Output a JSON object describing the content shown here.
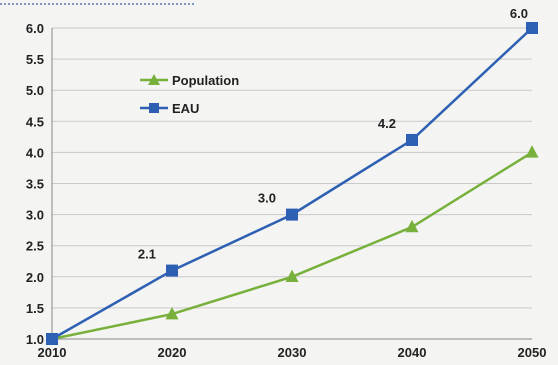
{
  "chart_data": {
    "type": "line",
    "title": "",
    "xlabel": "",
    "ylabel": "",
    "x": [
      2010,
      2020,
      2030,
      2040,
      2050
    ],
    "x_tick_labels": [
      "2010",
      "2020",
      "2030",
      "2040",
      "2050"
    ],
    "ylim": [
      1.0,
      6.0
    ],
    "y_ticks": [
      1.0,
      1.5,
      2.0,
      2.5,
      3.0,
      3.5,
      4.0,
      4.5,
      5.0,
      5.5,
      6.0
    ],
    "y_tick_labels": [
      "1.0",
      "1.5",
      "2.0",
      "2.5",
      "3.0",
      "3.5",
      "4.0",
      "4.5",
      "5.0",
      "5.5",
      "6.0"
    ],
    "grid": "horizontal",
    "legend_position": "upper-left",
    "series": [
      {
        "name": "Population",
        "marker": "triangle",
        "color": "#77b03a",
        "values": [
          1.0,
          1.4,
          2.0,
          2.8,
          4.0
        ],
        "data_labels": [
          "",
          "",
          "",
          "",
          ""
        ]
      },
      {
        "name": "EAU",
        "marker": "square",
        "color": "#2d5fb3",
        "values": [
          1.0,
          2.1,
          3.0,
          4.2,
          6.0
        ],
        "data_labels": [
          "",
          "2.1",
          "3.0",
          "4.2",
          "6.0"
        ]
      }
    ]
  }
}
